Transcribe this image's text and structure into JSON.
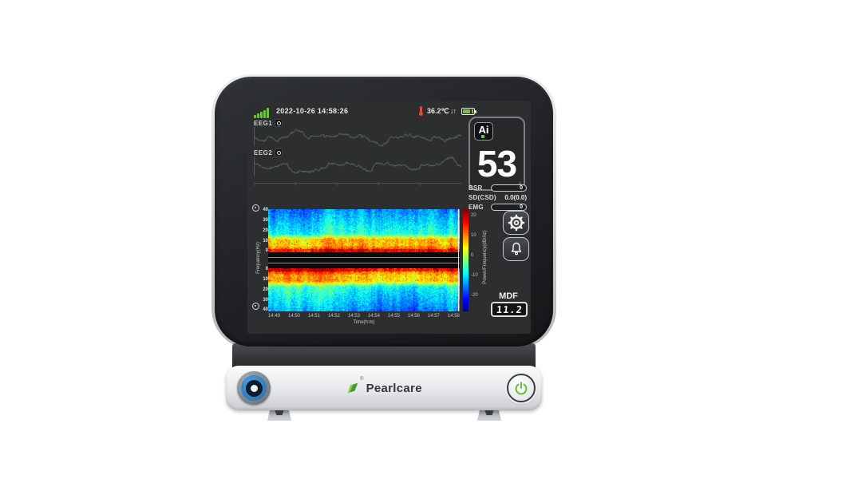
{
  "brand": {
    "name": "Pearlcare",
    "registered": "®"
  },
  "status_bar": {
    "datetime": "2022-10-26 14:58:26",
    "temperature": "36.2℃",
    "arrows": "↓↑",
    "signal_bars": 5
  },
  "eeg": {
    "ch1_label": "EEG1",
    "ch2_label": "EEG2"
  },
  "ai_panel": {
    "badge": "Ai",
    "value": "53"
  },
  "metrics": {
    "bsr_label": "BSR",
    "bsr_value": "0",
    "sd_label": "SD(CSD)",
    "sd_value": "0.0(0.0)",
    "emg_label": "EMG",
    "emg_value": "0"
  },
  "mdf": {
    "label": "MDF",
    "value": "11.2"
  },
  "spectrogram": {
    "ylabel": "Frequency(Hz)",
    "xlabel": "Time(h:m)",
    "y_ticks_top": [
      "40",
      "30",
      "20",
      "10",
      "0"
    ],
    "y_ticks_bottom": [
      "0",
      "10",
      "20",
      "30",
      "40"
    ],
    "x_ticks": [
      "14:49",
      "14:50",
      "14:51",
      "14:52",
      "14:53",
      "14:54",
      "14:55",
      "14:56",
      "14:57",
      "14:58"
    ],
    "colorbar": {
      "label": "Power/Frequency(dB/Hz)",
      "ticks": [
        "20",
        "10",
        "0",
        "-10",
        "-20"
      ]
    }
  },
  "colors": {
    "accent_green": "#72c043",
    "alarm_red": "#e8493a",
    "wave_green": "#64775a",
    "knob_blue": "#2f84c9",
    "power_green": "#6cbf3e"
  }
}
